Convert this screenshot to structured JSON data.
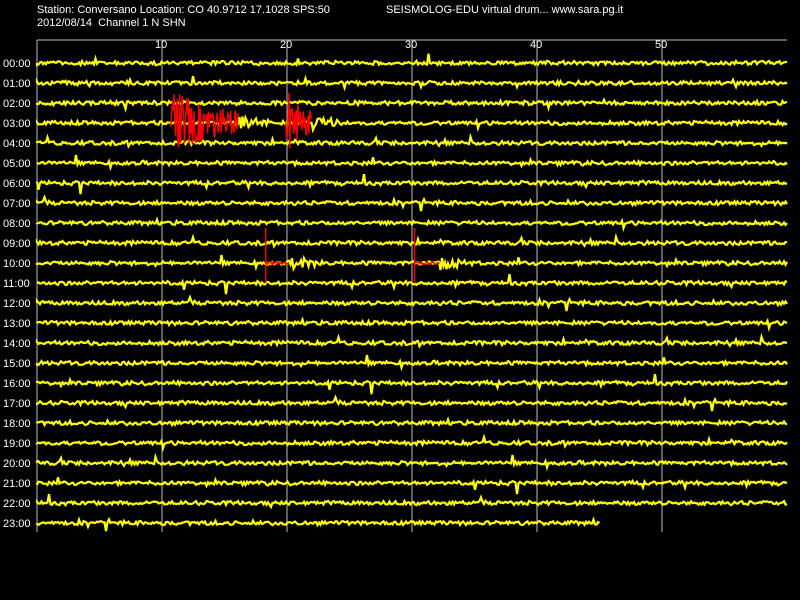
{
  "header": {
    "station_line": "Station: Conversano Location: CO 40.9712 17.1028 SPS:50",
    "date_channel_line": "2012/08/14  Channel 1 N SHN",
    "app_line": "SEISMOLOG-EDU virtual drum... www.sara.pg.it"
  },
  "chart_data": {
    "type": "line",
    "title": "",
    "xlabel": "",
    "ylabel": "",
    "xlim": [
      0,
      60
    ],
    "x_ticks": [
      10,
      20,
      30,
      40,
      50
    ],
    "grid": true,
    "rows": [
      "00:00",
      "01:00",
      "02:00",
      "03:00",
      "04:00",
      "05:00",
      "06:00",
      "07:00",
      "08:00",
      "09:00",
      "10:00",
      "11:00",
      "12:00",
      "13:00",
      "14:00",
      "15:00",
      "16:00",
      "17:00",
      "18:00",
      "19:00",
      "20:00",
      "21:00",
      "22:00",
      "23:00"
    ],
    "last_row_end_minute": 45,
    "trace_color": "#ffff00",
    "event_color": "#ff0000",
    "events": [
      {
        "row": "03:00",
        "start_minute": 10.7,
        "end_minute": 16.2,
        "peak": 1.0
      },
      {
        "row": "03:00",
        "start_minute": 19.9,
        "end_minute": 22.0,
        "peak": 1.0
      },
      {
        "row": "10:00",
        "start_minute": 18.3,
        "end_minute": 20.2,
        "peak": 0.35
      },
      {
        "row": "10:00",
        "start_minute": 30.2,
        "end_minute": 32.2,
        "peak": 0.35
      }
    ]
  }
}
